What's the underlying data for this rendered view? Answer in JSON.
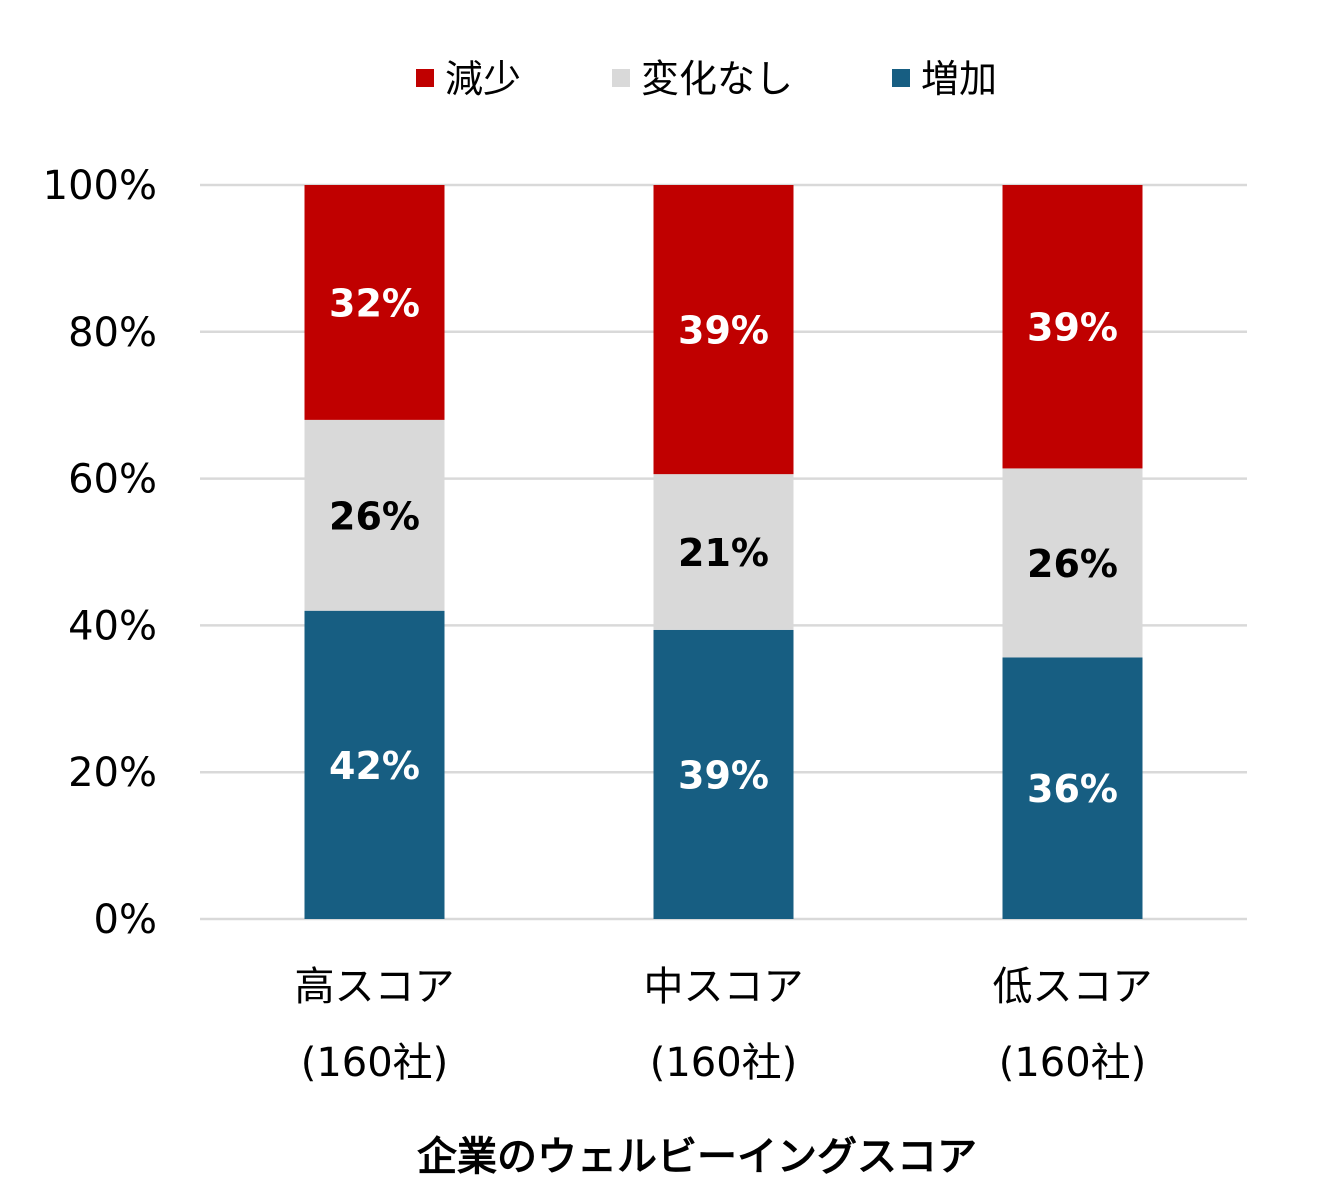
{
  "chart_data": {
    "type": "bar",
    "stacked": "percent",
    "title": "",
    "xlabel": "企業のウェルビーイングスコア",
    "ylabel": "",
    "ylim": [
      0,
      100
    ],
    "yticks": [
      "0%",
      "20%",
      "40%",
      "60%",
      "80%",
      "100%"
    ],
    "grid": true,
    "legend_position": "top",
    "categories": [
      {
        "line1": "高スコア",
        "line2": "(160社)"
      },
      {
        "line1": "中スコア",
        "line2": "(160社)"
      },
      {
        "line1": "低スコア",
        "line2": "(160社)"
      }
    ],
    "series": [
      {
        "name": "増加",
        "color": "#175E82",
        "label_color": "#ffffff",
        "values": [
          42,
          39,
          36
        ]
      },
      {
        "name": "変化なし",
        "color": "#D9D9D9",
        "label_color": "#000000",
        "values": [
          26,
          21,
          26
        ]
      },
      {
        "name": "減少",
        "color": "#C00000",
        "label_color": "#ffffff",
        "values": [
          32,
          39,
          39
        ]
      }
    ],
    "legend_order": [
      "減少",
      "変化なし",
      "増加"
    ]
  }
}
